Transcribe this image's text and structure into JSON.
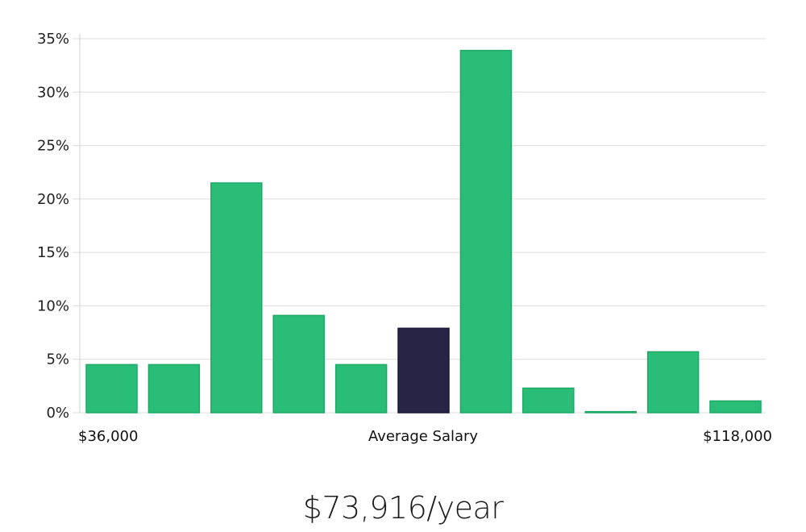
{
  "chart_data": {
    "type": "bar",
    "title": "",
    "ylabel": "",
    "xlabel": "Average Salary",
    "x_start_label": "$36,000",
    "x_end_label": "$118,000",
    "ylim": [
      0,
      35
    ],
    "yticks": [
      0,
      5,
      10,
      15,
      20,
      25,
      30,
      35
    ],
    "ytick_labels": [
      "0%",
      "5%",
      "10%",
      "15%",
      "20%",
      "25%",
      "30%",
      "35%"
    ],
    "grid": true,
    "values": [
      4.5,
      4.5,
      21.5,
      9.1,
      4.5,
      7.9,
      33.9,
      2.3,
      0.1,
      5.7,
      1.1
    ],
    "highlight_index": 5,
    "colors": {
      "bar": "#2abd78",
      "bar_stroke": "#1fa866",
      "highlight": "#272446",
      "grid": "#dcdcdc",
      "axis": "#cfcfcf"
    }
  },
  "salary_summary": "$73,916/year"
}
